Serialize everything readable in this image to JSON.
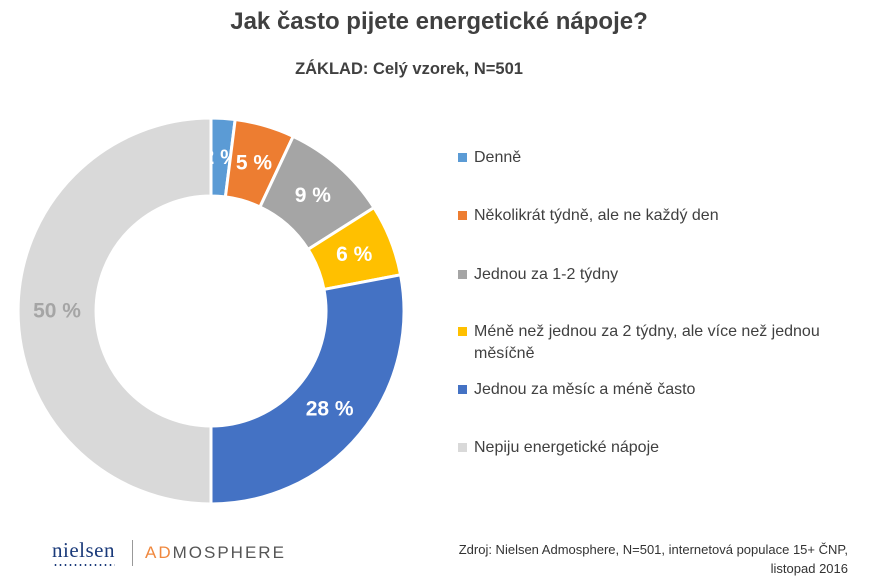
{
  "chart_data": {
    "type": "pie",
    "title": "Jak často pijete energetické nápoje?",
    "subtitle": "ZÁKLAD: Celý vzorek, N=501",
    "categories": [
      "Denně",
      "Několikrát týdně, ale ne každý den",
      "Jednou za 1-2 týdny",
      "Méně než jednou za 2 týdny, ale více než jednou měsíčně",
      "Jednou za měsíc a méně často",
      "Nepiju energetické nápoje"
    ],
    "values": [
      2,
      5,
      9,
      6,
      28,
      50
    ],
    "data_labels": [
      "2 %",
      "5 %",
      "9 %",
      "6 %",
      "28 %",
      "50 %"
    ],
    "colors": [
      "#5b9bd5",
      "#ed7d31",
      "#a5a5a5",
      "#ffc000",
      "#4472c4",
      "#d9d9d9"
    ],
    "label_colors": [
      "#ffffff",
      "#ffffff",
      "#ffffff",
      "#ffffff",
      "#ffffff",
      "#a5a5a5"
    ],
    "style": "donut",
    "legend_position": "right"
  },
  "footer": {
    "logo_nielsen": "nielsen",
    "logo_ad": "AD",
    "logo_mosphere": "MOSPHERE",
    "source_line1": "Zdroj: Nielsen Admosphere, N=501, internetová populace 15+ ČNP,",
    "source_line2": "listopad 2016"
  }
}
